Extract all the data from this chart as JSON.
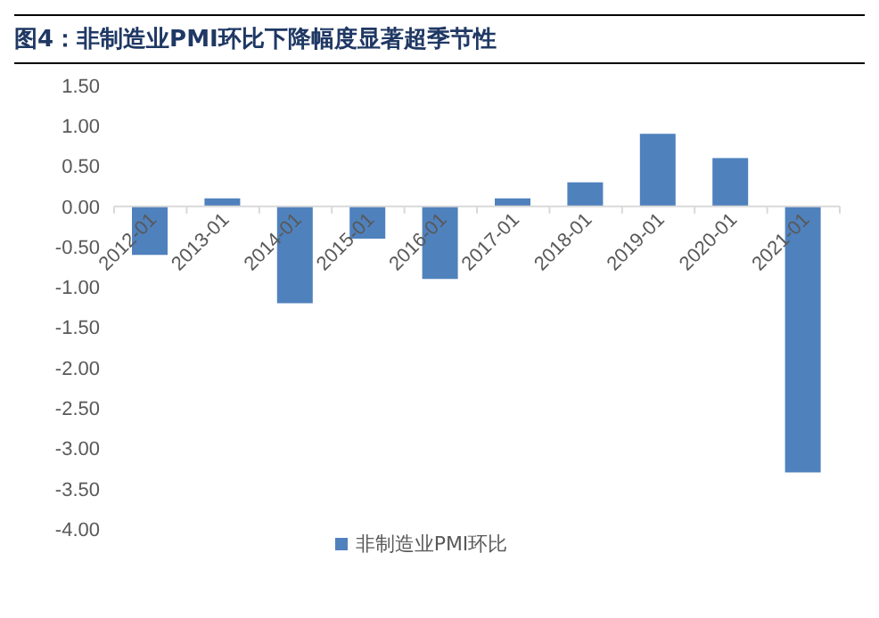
{
  "chart_data": {
    "type": "bar",
    "title": "图4：非制造业PMI环比下降幅度显著超季节性",
    "categories": [
      "2012-01",
      "2013-01",
      "2014-01",
      "2015-01",
      "2016-01",
      "2017-01",
      "2018-01",
      "2019-01",
      "2020-01",
      "2021-01"
    ],
    "series": [
      {
        "name": "非制造业PMI环比",
        "color": "#4f81bd",
        "values": [
          -0.6,
          0.1,
          -1.2,
          -0.4,
          -0.9,
          0.1,
          0.3,
          0.9,
          0.6,
          -3.3
        ]
      }
    ],
    "ylim": [
      -4,
      1.5
    ],
    "yticks": [
      {
        "value": -4,
        "label": "-4.00"
      },
      {
        "value": -3.5,
        "label": "-3.50"
      },
      {
        "value": -3,
        "label": "-3.00"
      },
      {
        "value": -2.5,
        "label": "-2.50"
      },
      {
        "value": -2,
        "label": "-2.00"
      },
      {
        "value": -1.5,
        "label": "-1.50"
      },
      {
        "value": -1,
        "label": "-1.00"
      },
      {
        "value": -0.5,
        "label": "-0.50"
      },
      {
        "value": 0,
        "label": "0.00"
      },
      {
        "value": 0.5,
        "label": "0.50"
      },
      {
        "value": 1,
        "label": "1.00"
      },
      {
        "value": 1.5,
        "label": "1.50"
      }
    ],
    "legend": "bottom"
  }
}
